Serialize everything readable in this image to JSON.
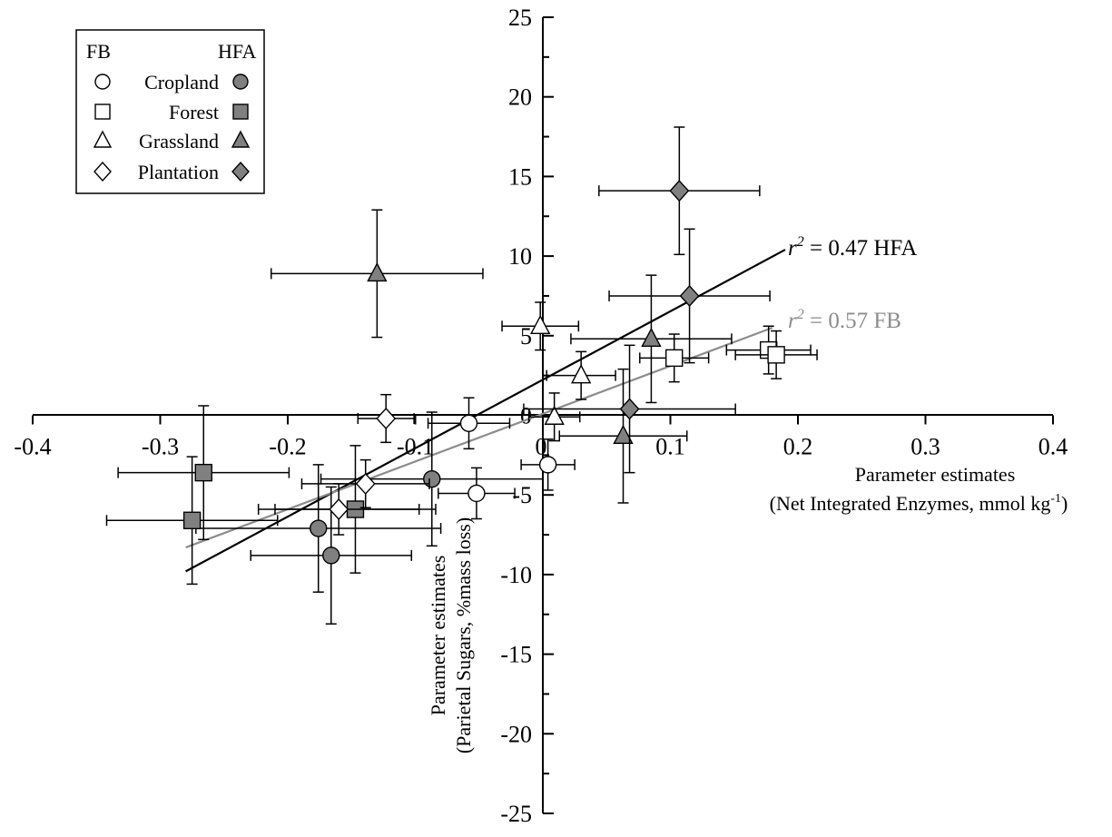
{
  "chart_data": {
    "type": "scatter",
    "xlim": [
      -0.4,
      0.4
    ],
    "ylim": [
      -25,
      25
    ],
    "x_ticks": [
      "-0.4",
      "-0.3",
      "-0.2",
      "-0.1",
      "0",
      "0.1",
      "0.2",
      "0.3",
      "0.4"
    ],
    "y_ticks": [
      "25",
      "20",
      "15",
      "10",
      "5",
      "0",
      "-5",
      "-10",
      "-15",
      "-20",
      "-25"
    ],
    "xlabel": {
      "line1": "Parameter estimates",
      "line2_main": "(Net Integrated Enzymes, mmol kg",
      "line2_sup": "-1",
      "line2_end": ")"
    },
    "ylabel": {
      "line1": "Parameter estimates",
      "line2": "(Parietal Sugars, %mass loss)"
    },
    "grid": false,
    "legend": {
      "position": "top-left",
      "header_left": "FB",
      "header_right": "HFA",
      "entries": [
        "Cropland",
        "Forest",
        "Grassland",
        "Plantation"
      ]
    },
    "fits": [
      {
        "label_prefix": "r",
        "label_sup": "2",
        "label_suffix": " = 0.47 HFA",
        "x": [
          -0.28,
          0.19
        ],
        "y": [
          -9.8,
          10.4
        ],
        "color": "#000000"
      },
      {
        "label_prefix": "r",
        "label_sup": "2",
        "label_suffix": " = 0.57 FB",
        "x": [
          -0.28,
          0.18
        ],
        "y": [
          -8.3,
          5.5
        ],
        "color": "#8c8c8c"
      }
    ],
    "series": [
      {
        "group": "FB",
        "landuse": "Cropland",
        "marker": "circle",
        "fill": "#ffffff",
        "points": [
          {
            "x": -0.058,
            "y": -0.5,
            "xerr": 0.032,
            "yerr": 1.6
          },
          {
            "x": 0.004,
            "y": -3.1,
            "xerr": 0.021,
            "yerr": 1.6
          },
          {
            "x": -0.052,
            "y": -4.9,
            "xerr": 0.03,
            "yerr": 1.6
          }
        ]
      },
      {
        "group": "HFA",
        "landuse": "Cropland",
        "marker": "circle",
        "fill": "#808080",
        "points": [
          {
            "x": -0.087,
            "y": -4.0,
            "xerr": 0.087,
            "yerr": 4.2
          },
          {
            "x": -0.176,
            "y": -7.1,
            "xerr": 0.096,
            "yerr": 4.0
          },
          {
            "x": -0.166,
            "y": -8.8,
            "xerr": 0.063,
            "yerr": 4.3
          }
        ]
      },
      {
        "group": "FB",
        "landuse": "Forest",
        "marker": "square",
        "fill": "#ffffff",
        "points": [
          {
            "x": 0.103,
            "y": 3.6,
            "xerr": 0.027,
            "yerr": 1.5
          },
          {
            "x": 0.177,
            "y": 4.1,
            "xerr": 0.033,
            "yerr": 1.5
          },
          {
            "x": 0.183,
            "y": 3.8,
            "xerr": 0.032,
            "yerr": 1.5
          }
        ]
      },
      {
        "group": "HFA",
        "landuse": "Forest",
        "marker": "square",
        "fill": "#808080",
        "points": [
          {
            "x": -0.266,
            "y": -3.6,
            "xerr": 0.067,
            "yerr": 4.2
          },
          {
            "x": -0.275,
            "y": -6.6,
            "xerr": 0.067,
            "yerr": 4.0
          },
          {
            "x": -0.147,
            "y": -5.9,
            "xerr": 0.063,
            "yerr": 4.0
          }
        ]
      },
      {
        "group": "FB",
        "landuse": "Grassland",
        "marker": "triangle",
        "fill": "#ffffff",
        "points": [
          {
            "x": -0.002,
            "y": 5.6,
            "xerr": 0.03,
            "yerr": 1.5
          },
          {
            "x": 0.03,
            "y": 2.5,
            "xerr": 0.027,
            "yerr": 1.5
          },
          {
            "x": 0.009,
            "y": -0.1,
            "xerr": 0.02,
            "yerr": 1.5
          }
        ]
      },
      {
        "group": "HFA",
        "landuse": "Grassland",
        "marker": "triangle",
        "fill": "#808080",
        "points": [
          {
            "x": -0.13,
            "y": 8.9,
            "xerr": 0.083,
            "yerr": 4.0
          },
          {
            "x": 0.085,
            "y": 4.8,
            "xerr": 0.063,
            "yerr": 4.0
          },
          {
            "x": 0.063,
            "y": -1.3,
            "xerr": 0.05,
            "yerr": 4.2
          }
        ]
      },
      {
        "group": "FB",
        "landuse": "Plantation",
        "marker": "diamond",
        "fill": "#ffffff",
        "points": [
          {
            "x": -0.123,
            "y": -0.2,
            "xerr": 0.022,
            "yerr": 1.5
          },
          {
            "x": -0.139,
            "y": -4.3,
            "xerr": 0.05,
            "yerr": 1.5
          },
          {
            "x": -0.16,
            "y": -5.9,
            "xerr": 0.063,
            "yerr": 1.6
          }
        ]
      },
      {
        "group": "HFA",
        "landuse": "Plantation",
        "marker": "diamond",
        "fill": "#808080",
        "points": [
          {
            "x": 0.107,
            "y": 14.1,
            "xerr": 0.063,
            "yerr": 4.0
          },
          {
            "x": 0.115,
            "y": 7.5,
            "xerr": 0.063,
            "yerr": 4.2
          },
          {
            "x": 0.068,
            "y": 0.4,
            "xerr": 0.083,
            "yerr": 4.0
          }
        ]
      }
    ]
  }
}
